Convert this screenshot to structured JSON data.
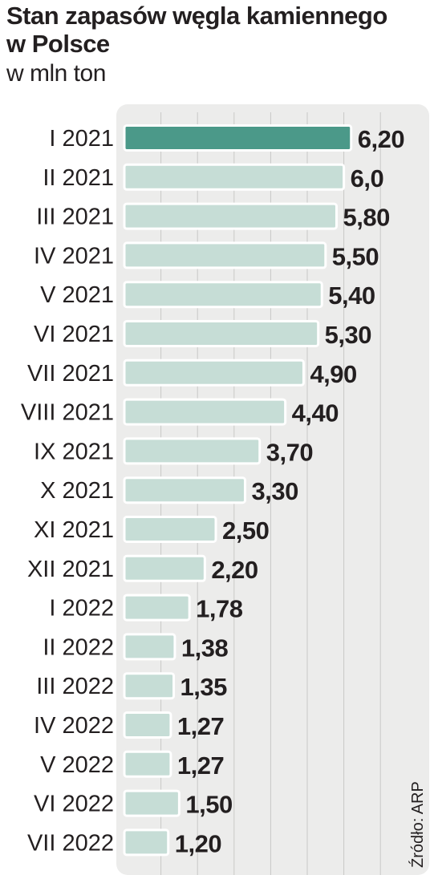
{
  "chart_data": {
    "type": "bar",
    "orientation": "horizontal",
    "title": "Stan zapasów węgla kamiennego w Polsce",
    "subtitle": "w mln ton",
    "source": "Źródło: ARP",
    "categories": [
      "I 2021",
      "II 2021",
      "III 2021",
      "IV 2021",
      "V 2021",
      "VI 2021",
      "VII 2021",
      "VIII 2021",
      "IX 2021",
      "X 2021",
      "XI 2021",
      "XII 2021",
      "I 2022",
      "II 2022",
      "III 2022",
      "IV 2022",
      "V 2022",
      "VI 2022",
      "VII 2022"
    ],
    "values": [
      6.2,
      6.0,
      5.8,
      5.5,
      5.4,
      5.3,
      4.9,
      4.4,
      3.7,
      3.3,
      2.5,
      2.2,
      1.78,
      1.38,
      1.35,
      1.27,
      1.27,
      1.5,
      1.2
    ],
    "value_labels": [
      "6,20",
      "6,0",
      "5,80",
      "5,50",
      "5,40",
      "5,30",
      "4,90",
      "4,40",
      "3,70",
      "3,30",
      "2,50",
      "2,20",
      "1,78",
      "1,38",
      "1,35",
      "1,27",
      "1,27",
      "1,50",
      "1,20"
    ],
    "highlight_index": 0,
    "grid": true,
    "xlim": [
      0,
      7
    ],
    "colors": {
      "highlight": "#4b9989",
      "bar": "#c6ddd6",
      "bar_border": "#a9c9bf",
      "panel": "#ececeb",
      "grid": "#c9c9c7",
      "text": "#231f20"
    }
  }
}
